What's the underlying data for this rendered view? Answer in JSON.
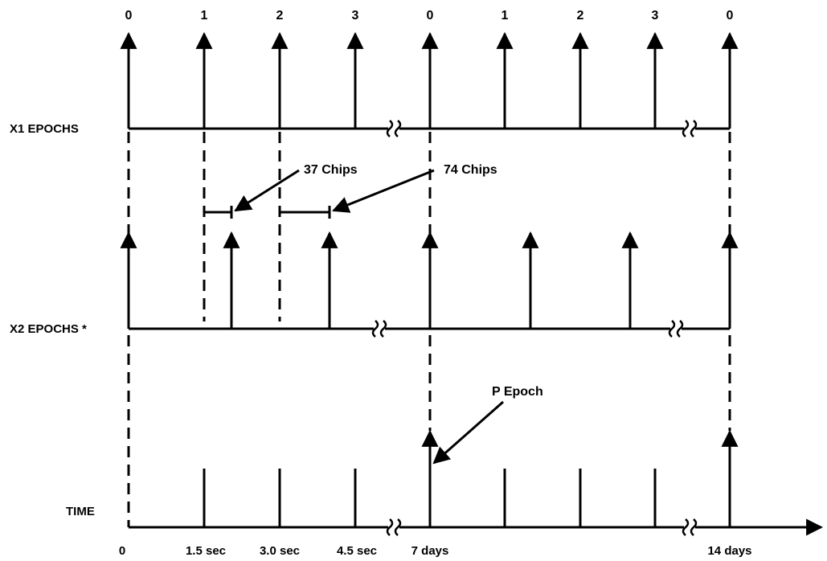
{
  "rows": {
    "x1_label": "X1 EPOCHS",
    "x2_label": "X2 EPOCHS *",
    "time_label": "TIME"
  },
  "x1_epoch_numbers": [
    "0",
    "1",
    "2",
    "3",
    "0",
    "1",
    "2",
    "3",
    "0"
  ],
  "annotations": {
    "chips_37": "37 Chips",
    "chips_74": "74 Chips",
    "p_epoch": "P Epoch"
  },
  "time_ticks": [
    "0",
    "1.5 sec",
    "3.0 sec",
    "4.5 sec",
    "7 days",
    "14 days"
  ],
  "colors": {
    "ink": "#000000",
    "background": "#ffffff"
  }
}
